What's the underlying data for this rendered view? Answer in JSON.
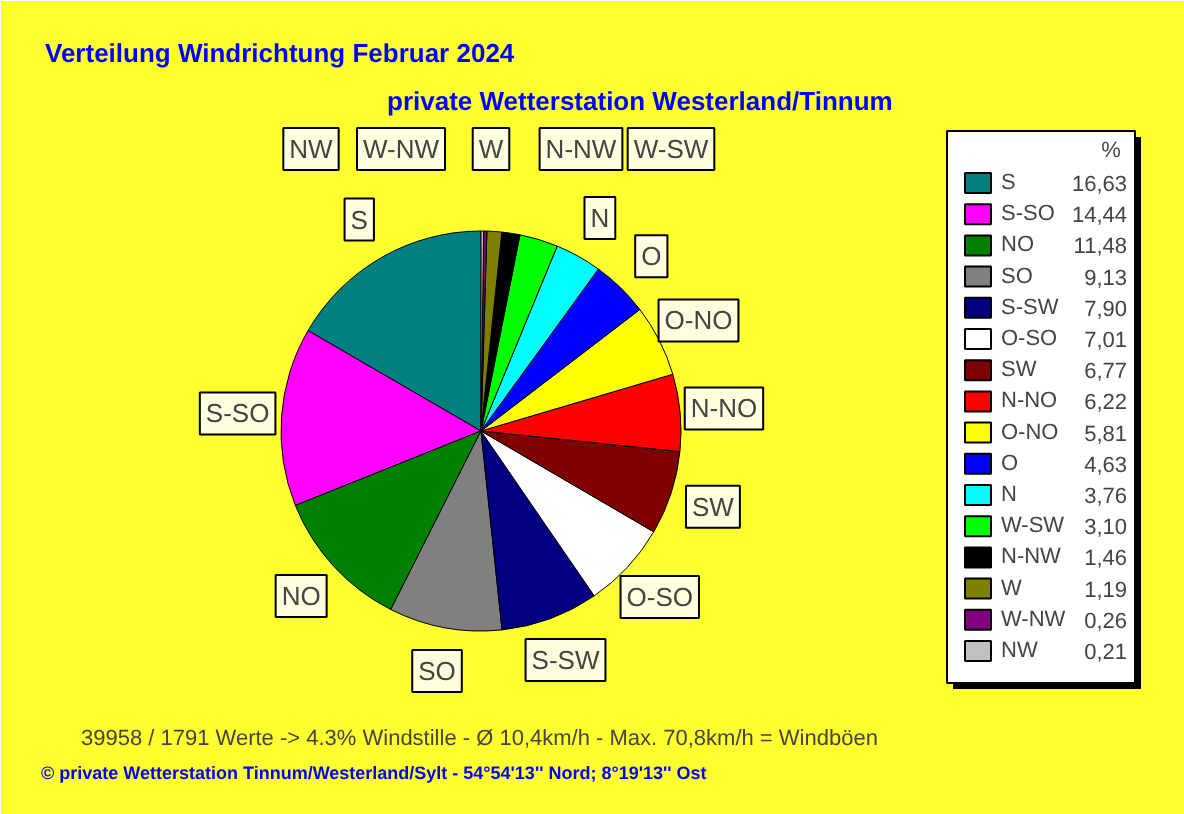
{
  "chart_data": {
    "type": "pie",
    "title": "Verteilung Windrichtung   Februar 2024",
    "subtitle": "private Wetterstation Westerland/Tinnum",
    "categories": [
      "S",
      "S-SO",
      "NO",
      "SO",
      "S-SW",
      "O-SO",
      "SW",
      "N-NO",
      "O-NO",
      "O",
      "N",
      "W-SW",
      "N-NW",
      "W",
      "W-NW",
      "NW"
    ],
    "values": [
      16.63,
      14.44,
      11.48,
      9.13,
      7.9,
      7.01,
      6.77,
      6.22,
      5.81,
      4.63,
      3.76,
      3.1,
      1.46,
      1.19,
      0.26,
      0.21
    ],
    "value_labels": [
      "16,63",
      "14,44",
      "11,48",
      "9,13",
      "7,90",
      "7,01",
      "6,77",
      "6,22",
      "5,81",
      "4,63",
      "3,76",
      "3,10",
      "1,46",
      "1,19",
      "0,26",
      "0,21"
    ],
    "colors": [
      "#008080",
      "#ff00ff",
      "#008000",
      "#808080",
      "#000080",
      "#ffffff",
      "#800000",
      "#ff0000",
      "#ffff00",
      "#0000ff",
      "#00ffff",
      "#00ff00",
      "#000000",
      "#808000",
      "#800080",
      "#c0c0c0"
    ],
    "legend": "right",
    "legend_title": "%",
    "annotations": [
      "39958 / 1791 Werte  -> 4.3% Windstille   -   Ø 10,4km/h  -  Max. 70,8km/h = Windböen",
      "© private Wetterstation Tinnum/Westerland/Sylt   -   54°54'13'' Nord; 8°19'13'' Ost"
    ]
  }
}
